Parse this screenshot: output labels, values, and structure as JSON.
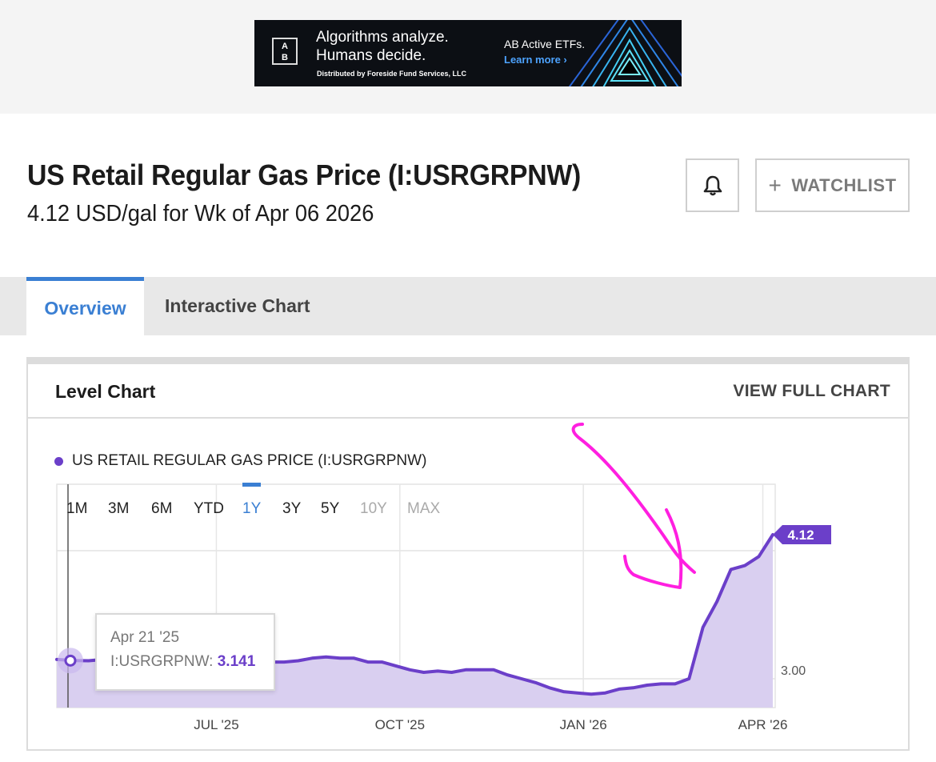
{
  "ad": {
    "logo_text": "A\nB",
    "headline_1": "Algorithms analyze.",
    "headline_2": "Humans decide.",
    "disclaimer": "Distributed by Foreside Fund Services, LLC",
    "brand": "AB Active ETFs.",
    "cta": "Learn more ›"
  },
  "header": {
    "title": "US Retail Regular Gas Price (I:USRGRPNW)",
    "subtitle": "4.12 USD/gal for Wk of Apr 06 2026",
    "watchlist_label": "WATCHLIST",
    "watchlist_plus": "+"
  },
  "tabs": [
    {
      "label": "Overview",
      "active": true
    },
    {
      "label": "Interactive Chart",
      "active": false
    }
  ],
  "card": {
    "title": "Level Chart",
    "link": "VIEW FULL CHART"
  },
  "legend": {
    "label": "US RETAIL REGULAR GAS PRICE (I:USRGRPNW)"
  },
  "ranges": [
    {
      "label": "1M",
      "state": "normal"
    },
    {
      "label": "3M",
      "state": "normal"
    },
    {
      "label": "6M",
      "state": "normal"
    },
    {
      "label": "YTD",
      "state": "normal"
    },
    {
      "label": "1Y",
      "state": "active"
    },
    {
      "label": "3Y",
      "state": "normal"
    },
    {
      "label": "5Y",
      "state": "normal"
    },
    {
      "label": "10Y",
      "state": "disabled"
    },
    {
      "label": "MAX",
      "state": "disabled"
    }
  ],
  "tooltip": {
    "date": "Apr 21 '25",
    "series": "I:USRGRPNW:",
    "value": "3.141"
  },
  "colors": {
    "series": "#6b3fc9",
    "area": "#d9cff0",
    "active_tab": "#3a7fd3",
    "annotation": "#ff1fe0"
  },
  "chart_data": {
    "type": "area",
    "series": [
      {
        "name": "US RETAIL REGULAR GAS PRICE (I:USRGRPNW)",
        "x": [
          "2025-04-14",
          "2025-04-21",
          "2025-04-28",
          "2025-05-05",
          "2025-05-12",
          "2025-05-19",
          "2025-05-26",
          "2025-06-02",
          "2025-06-09",
          "2025-06-16",
          "2025-06-23",
          "2025-06-30",
          "2025-07-07",
          "2025-07-14",
          "2025-07-21",
          "2025-07-28",
          "2025-08-04",
          "2025-08-11",
          "2025-08-18",
          "2025-08-25",
          "2025-09-01",
          "2025-09-08",
          "2025-09-15",
          "2025-09-22",
          "2025-09-29",
          "2025-10-06",
          "2025-10-13",
          "2025-10-20",
          "2025-10-27",
          "2025-11-03",
          "2025-11-10",
          "2025-11-17",
          "2025-11-24",
          "2025-12-01",
          "2025-12-08",
          "2025-12-15",
          "2025-12-22",
          "2025-12-29",
          "2026-01-05",
          "2026-01-12",
          "2026-01-19",
          "2026-01-26",
          "2026-02-02",
          "2026-02-09",
          "2026-02-16",
          "2026-02-23",
          "2026-03-02",
          "2026-03-09",
          "2026-03-16",
          "2026-03-23",
          "2026-03-30",
          "2026-04-06"
        ],
        "y": [
          3.15,
          3.141,
          3.14,
          3.15,
          3.16,
          3.17,
          3.15,
          3.15,
          3.14,
          3.13,
          3.14,
          3.13,
          3.12,
          3.13,
          3.14,
          3.13,
          3.13,
          3.14,
          3.16,
          3.17,
          3.16,
          3.16,
          3.13,
          3.13,
          3.1,
          3.07,
          3.05,
          3.06,
          3.05,
          3.07,
          3.07,
          3.07,
          3.03,
          3.0,
          2.97,
          2.93,
          2.9,
          2.89,
          2.88,
          2.89,
          2.92,
          2.93,
          2.95,
          2.96,
          2.96,
          3.0,
          3.4,
          3.6,
          3.85,
          3.88,
          3.95,
          4.12
        ]
      }
    ],
    "x_ticks": [
      "JUL '25",
      "OCT '25",
      "JAN '26",
      "APR '26"
    ],
    "y_ticks": [
      "3.00"
    ],
    "last_value_label": "4.12",
    "ylim": [
      2.85,
      4.25
    ],
    "grid": true,
    "legend_position": "top-left"
  }
}
